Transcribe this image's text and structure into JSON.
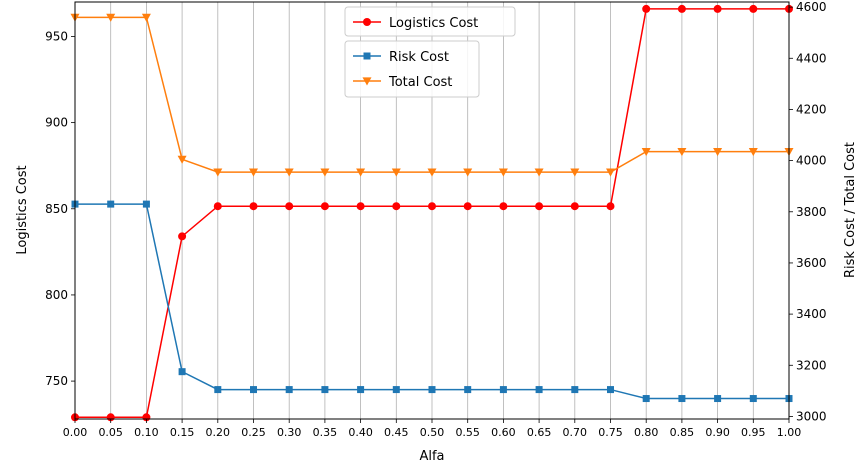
{
  "chart_data": {
    "type": "line",
    "x": [
      0.0,
      0.05,
      0.1,
      0.15,
      0.2,
      0.25,
      0.3,
      0.35,
      0.4,
      0.45,
      0.5,
      0.55,
      0.6,
      0.65,
      0.7,
      0.75,
      0.8,
      0.85,
      0.9,
      0.95,
      1.0
    ],
    "x_tick_labels": [
      "0.00",
      "0.05",
      "0.10",
      "0.15",
      "0.20",
      "0.25",
      "0.30",
      "0.35",
      "0.40",
      "0.45",
      "0.50",
      "0.55",
      "0.60",
      "0.65",
      "0.70",
      "0.75",
      "0.80",
      "0.85",
      "0.90",
      "0.95",
      "1.00"
    ],
    "xlabel": "Alfa",
    "xlim": [
      0,
      1
    ],
    "grid": "vertical",
    "left_axis": {
      "label": "Logistics Cost",
      "ylim": [
        728,
        970
      ],
      "ticks": [
        750,
        800,
        850,
        900,
        950
      ]
    },
    "right_axis": {
      "label": "Risk Cost / Total Cost",
      "ylim": [
        2990,
        4620
      ],
      "ticks": [
        3000,
        3200,
        3400,
        3600,
        3800,
        4000,
        4200,
        4400,
        4600
      ]
    },
    "series": [
      {
        "name": "Logistics Cost",
        "axis": "left",
        "color": "#ff0000",
        "marker": "circle",
        "values": [
          729,
          729,
          729,
          834,
          851.5,
          851.5,
          851.5,
          851.5,
          851.5,
          851.5,
          851.5,
          851.5,
          851.5,
          851.5,
          851.5,
          851.5,
          966,
          966,
          966,
          966,
          966
        ]
      },
      {
        "name": "Risk Cost",
        "axis": "right",
        "color": "#1f77b4",
        "marker": "square",
        "values": [
          3830,
          3830,
          3830,
          3175,
          3105,
          3105,
          3105,
          3105,
          3105,
          3105,
          3105,
          3105,
          3105,
          3105,
          3105,
          3105,
          3070,
          3070,
          3070,
          3070,
          3070
        ]
      },
      {
        "name": "Total Cost",
        "axis": "right",
        "color": "#ff7f0e",
        "marker": "triangle-down",
        "values": [
          4560,
          4560,
          4560,
          4005,
          3955,
          3955,
          3955,
          3955,
          3955,
          3955,
          3955,
          3955,
          3955,
          3955,
          3955,
          3955,
          4035,
          4035,
          4035,
          4035,
          4035
        ]
      }
    ],
    "legends": [
      {
        "placement": "top-center",
        "entries": [
          "Logistics Cost"
        ]
      },
      {
        "placement": "top-center-below",
        "entries": [
          "Risk Cost",
          "Total Cost"
        ]
      }
    ]
  }
}
